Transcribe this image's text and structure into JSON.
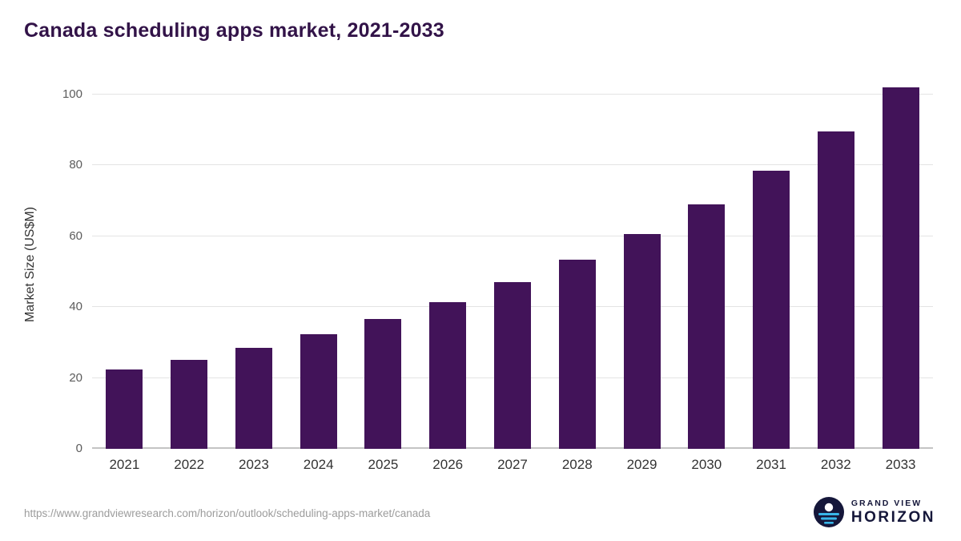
{
  "page": {
    "source_url": "https://www.grandviewresearch.com/horizon/outlook/scheduling-apps-market/canada",
    "logo": {
      "line1": "GRAND VIEW",
      "line2": "HORIZON"
    }
  },
  "chart_data": {
    "type": "bar",
    "title": "Canada scheduling apps market, 2021-2033",
    "categories": [
      "2021",
      "2022",
      "2023",
      "2024",
      "2025",
      "2026",
      "2027",
      "2028",
      "2029",
      "2030",
      "2031",
      "2032",
      "2033"
    ],
    "values": [
      22.3,
      25.2,
      28.5,
      32.4,
      36.6,
      41.5,
      47.1,
      53.5,
      60.7,
      68.9,
      78.6,
      89.5,
      102.0
    ],
    "xlabel": "",
    "ylabel": "Market Size (US$M)",
    "unit": "US$M",
    "ylim": [
      0,
      103
    ],
    "yticks": [
      0,
      20,
      40,
      60,
      80,
      100
    ],
    "grid": true,
    "legend": false,
    "bar_color": "#421359"
  },
  "colors": {
    "title": "#321348",
    "bar": "#421359",
    "gridline": "#e4e4e4",
    "axis_line": "#c4c4c4",
    "tick_label": "#5c5c5c",
    "x_label": "#333333",
    "source_text": "#9c9c9c",
    "logo_navy": "#15173a",
    "logo_cyan": "#38b6e8"
  }
}
